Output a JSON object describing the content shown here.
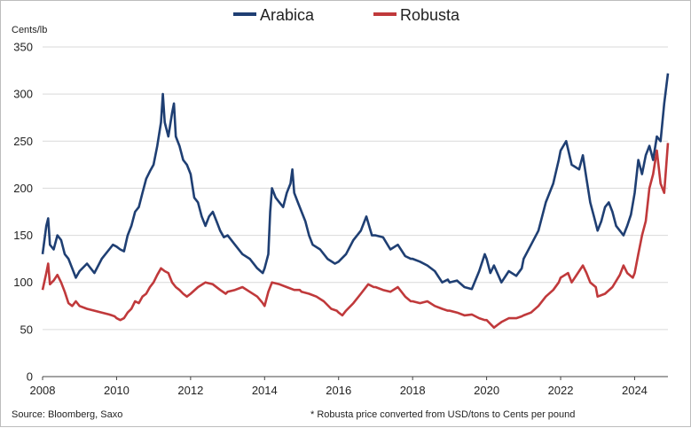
{
  "chart_data": {
    "type": "line",
    "title": "",
    "ylabel": "Cents/lb",
    "xlabel": "",
    "ylim": [
      0,
      350
    ],
    "xlim": [
      2008,
      2024.9
    ],
    "grid": "horizontal",
    "legend_position": "top-center",
    "yticks": [
      "0",
      "50",
      "100",
      "150",
      "200",
      "250",
      "300",
      "350"
    ],
    "xticks": [
      "2008",
      "2010",
      "2012",
      "2014",
      "2016",
      "2018",
      "2020",
      "2022",
      "2024"
    ],
    "source": "Source: Bloomberg, Saxo",
    "note": "* Robusta price converted from USD/tons to Cents per pound",
    "series": [
      {
        "name": "Arabica",
        "color": "#1f3f73",
        "points": [
          [
            2008.0,
            130
          ],
          [
            2008.1,
            160
          ],
          [
            2008.15,
            168
          ],
          [
            2008.2,
            140
          ],
          [
            2008.3,
            135
          ],
          [
            2008.4,
            150
          ],
          [
            2008.5,
            145
          ],
          [
            2008.6,
            130
          ],
          [
            2008.7,
            125
          ],
          [
            2008.8,
            115
          ],
          [
            2008.9,
            105
          ],
          [
            2009.0,
            112
          ],
          [
            2009.2,
            120
          ],
          [
            2009.4,
            110
          ],
          [
            2009.6,
            125
          ],
          [
            2009.8,
            135
          ],
          [
            2009.9,
            140
          ],
          [
            2010.0,
            138
          ],
          [
            2010.1,
            135
          ],
          [
            2010.2,
            133
          ],
          [
            2010.3,
            150
          ],
          [
            2010.4,
            160
          ],
          [
            2010.5,
            175
          ],
          [
            2010.6,
            180
          ],
          [
            2010.7,
            195
          ],
          [
            2010.8,
            210
          ],
          [
            2010.9,
            218
          ],
          [
            2011.0,
            225
          ],
          [
            2011.1,
            245
          ],
          [
            2011.2,
            270
          ],
          [
            2011.25,
            300
          ],
          [
            2011.3,
            270
          ],
          [
            2011.4,
            255
          ],
          [
            2011.5,
            280
          ],
          [
            2011.55,
            290
          ],
          [
            2011.6,
            255
          ],
          [
            2011.7,
            245
          ],
          [
            2011.8,
            230
          ],
          [
            2011.9,
            225
          ],
          [
            2012.0,
            215
          ],
          [
            2012.1,
            190
          ],
          [
            2012.2,
            185
          ],
          [
            2012.3,
            170
          ],
          [
            2012.4,
            160
          ],
          [
            2012.5,
            170
          ],
          [
            2012.6,
            175
          ],
          [
            2012.7,
            165
          ],
          [
            2012.8,
            155
          ],
          [
            2012.9,
            148
          ],
          [
            2013.0,
            150
          ],
          [
            2013.2,
            140
          ],
          [
            2013.4,
            130
          ],
          [
            2013.6,
            125
          ],
          [
            2013.8,
            115
          ],
          [
            2013.95,
            110
          ],
          [
            2014.0,
            115
          ],
          [
            2014.1,
            130
          ],
          [
            2014.15,
            175
          ],
          [
            2014.2,
            200
          ],
          [
            2014.3,
            190
          ],
          [
            2014.4,
            185
          ],
          [
            2014.5,
            180
          ],
          [
            2014.6,
            195
          ],
          [
            2014.7,
            205
          ],
          [
            2014.75,
            220
          ],
          [
            2014.8,
            195
          ],
          [
            2014.9,
            185
          ],
          [
            2015.0,
            175
          ],
          [
            2015.1,
            165
          ],
          [
            2015.2,
            150
          ],
          [
            2015.3,
            140
          ],
          [
            2015.5,
            135
          ],
          [
            2015.7,
            125
          ],
          [
            2015.9,
            120
          ],
          [
            2016.0,
            122
          ],
          [
            2016.2,
            130
          ],
          [
            2016.4,
            145
          ],
          [
            2016.6,
            155
          ],
          [
            2016.75,
            170
          ],
          [
            2016.9,
            150
          ],
          [
            2017.0,
            150
          ],
          [
            2017.2,
            148
          ],
          [
            2017.4,
            135
          ],
          [
            2017.6,
            140
          ],
          [
            2017.8,
            128
          ],
          [
            2017.95,
            125
          ],
          [
            2018.0,
            125
          ],
          [
            2018.2,
            122
          ],
          [
            2018.4,
            118
          ],
          [
            2018.6,
            112
          ],
          [
            2018.8,
            100
          ],
          [
            2018.95,
            103
          ],
          [
            2019.0,
            100
          ],
          [
            2019.2,
            102
          ],
          [
            2019.4,
            95
          ],
          [
            2019.6,
            93
          ],
          [
            2019.8,
            112
          ],
          [
            2019.95,
            130
          ],
          [
            2020.0,
            125
          ],
          [
            2020.1,
            110
          ],
          [
            2020.2,
            118
          ],
          [
            2020.4,
            100
          ],
          [
            2020.6,
            112
          ],
          [
            2020.8,
            107
          ],
          [
            2020.95,
            115
          ],
          [
            2021.0,
            125
          ],
          [
            2021.2,
            140
          ],
          [
            2021.4,
            155
          ],
          [
            2021.6,
            185
          ],
          [
            2021.8,
            205
          ],
          [
            2021.95,
            230
          ],
          [
            2022.0,
            240
          ],
          [
            2022.15,
            250
          ],
          [
            2022.3,
            225
          ],
          [
            2022.5,
            220
          ],
          [
            2022.6,
            235
          ],
          [
            2022.7,
            210
          ],
          [
            2022.8,
            185
          ],
          [
            2022.9,
            170
          ],
          [
            2023.0,
            155
          ],
          [
            2023.1,
            165
          ],
          [
            2023.2,
            180
          ],
          [
            2023.3,
            185
          ],
          [
            2023.4,
            175
          ],
          [
            2023.5,
            160
          ],
          [
            2023.6,
            155
          ],
          [
            2023.7,
            150
          ],
          [
            2023.8,
            160
          ],
          [
            2023.9,
            172
          ],
          [
            2024.0,
            195
          ],
          [
            2024.1,
            230
          ],
          [
            2024.2,
            215
          ],
          [
            2024.3,
            235
          ],
          [
            2024.4,
            245
          ],
          [
            2024.5,
            230
          ],
          [
            2024.6,
            255
          ],
          [
            2024.7,
            250
          ],
          [
            2024.8,
            290
          ],
          [
            2024.9,
            322
          ]
        ]
      },
      {
        "name": "Robusta",
        "color": "#c0393b",
        "points": [
          [
            2008.0,
            92
          ],
          [
            2008.1,
            110
          ],
          [
            2008.15,
            120
          ],
          [
            2008.2,
            98
          ],
          [
            2008.3,
            102
          ],
          [
            2008.4,
            108
          ],
          [
            2008.5,
            100
          ],
          [
            2008.6,
            90
          ],
          [
            2008.7,
            78
          ],
          [
            2008.8,
            75
          ],
          [
            2008.9,
            80
          ],
          [
            2009.0,
            75
          ],
          [
            2009.2,
            72
          ],
          [
            2009.4,
            70
          ],
          [
            2009.6,
            68
          ],
          [
            2009.8,
            66
          ],
          [
            2009.95,
            64
          ],
          [
            2010.0,
            62
          ],
          [
            2010.1,
            60
          ],
          [
            2010.2,
            62
          ],
          [
            2010.3,
            68
          ],
          [
            2010.4,
            72
          ],
          [
            2010.5,
            80
          ],
          [
            2010.6,
            78
          ],
          [
            2010.7,
            85
          ],
          [
            2010.8,
            88
          ],
          [
            2010.9,
            95
          ],
          [
            2011.0,
            100
          ],
          [
            2011.1,
            108
          ],
          [
            2011.2,
            115
          ],
          [
            2011.3,
            112
          ],
          [
            2011.4,
            110
          ],
          [
            2011.5,
            100
          ],
          [
            2011.6,
            95
          ],
          [
            2011.7,
            92
          ],
          [
            2011.8,
            88
          ],
          [
            2011.9,
            85
          ],
          [
            2012.0,
            88
          ],
          [
            2012.2,
            95
          ],
          [
            2012.4,
            100
          ],
          [
            2012.6,
            98
          ],
          [
            2012.8,
            92
          ],
          [
            2012.95,
            88
          ],
          [
            2013.0,
            90
          ],
          [
            2013.2,
            92
          ],
          [
            2013.4,
            95
          ],
          [
            2013.6,
            90
          ],
          [
            2013.8,
            85
          ],
          [
            2013.95,
            78
          ],
          [
            2014.0,
            75
          ],
          [
            2014.1,
            90
          ],
          [
            2014.2,
            100
          ],
          [
            2014.4,
            98
          ],
          [
            2014.6,
            95
          ],
          [
            2014.8,
            92
          ],
          [
            2014.95,
            92
          ],
          [
            2015.0,
            90
          ],
          [
            2015.2,
            88
          ],
          [
            2015.4,
            85
          ],
          [
            2015.6,
            80
          ],
          [
            2015.8,
            72
          ],
          [
            2015.95,
            70
          ],
          [
            2016.0,
            68
          ],
          [
            2016.1,
            65
          ],
          [
            2016.2,
            70
          ],
          [
            2016.4,
            78
          ],
          [
            2016.6,
            88
          ],
          [
            2016.8,
            98
          ],
          [
            2016.95,
            95
          ],
          [
            2017.0,
            95
          ],
          [
            2017.2,
            92
          ],
          [
            2017.4,
            90
          ],
          [
            2017.6,
            95
          ],
          [
            2017.8,
            85
          ],
          [
            2017.95,
            80
          ],
          [
            2018.0,
            80
          ],
          [
            2018.2,
            78
          ],
          [
            2018.4,
            80
          ],
          [
            2018.6,
            75
          ],
          [
            2018.8,
            72
          ],
          [
            2018.95,
            70
          ],
          [
            2019.0,
            70
          ],
          [
            2019.2,
            68
          ],
          [
            2019.4,
            65
          ],
          [
            2019.6,
            66
          ],
          [
            2019.8,
            62
          ],
          [
            2019.95,
            60
          ],
          [
            2020.0,
            60
          ],
          [
            2020.1,
            56
          ],
          [
            2020.2,
            52
          ],
          [
            2020.3,
            55
          ],
          [
            2020.4,
            58
          ],
          [
            2020.6,
            62
          ],
          [
            2020.8,
            62
          ],
          [
            2020.95,
            64
          ],
          [
            2021.0,
            65
          ],
          [
            2021.2,
            68
          ],
          [
            2021.4,
            75
          ],
          [
            2021.6,
            85
          ],
          [
            2021.8,
            92
          ],
          [
            2021.95,
            100
          ],
          [
            2022.0,
            105
          ],
          [
            2022.2,
            110
          ],
          [
            2022.3,
            100
          ],
          [
            2022.5,
            112
          ],
          [
            2022.6,
            118
          ],
          [
            2022.7,
            110
          ],
          [
            2022.8,
            100
          ],
          [
            2022.95,
            95
          ],
          [
            2023.0,
            85
          ],
          [
            2023.2,
            88
          ],
          [
            2023.4,
            95
          ],
          [
            2023.6,
            108
          ],
          [
            2023.7,
            118
          ],
          [
            2023.8,
            110
          ],
          [
            2023.95,
            105
          ],
          [
            2024.0,
            110
          ],
          [
            2024.1,
            130
          ],
          [
            2024.2,
            150
          ],
          [
            2024.3,
            165
          ],
          [
            2024.4,
            200
          ],
          [
            2024.5,
            215
          ],
          [
            2024.6,
            240
          ],
          [
            2024.7,
            205
          ],
          [
            2024.8,
            195
          ],
          [
            2024.9,
            248
          ]
        ]
      }
    ]
  }
}
